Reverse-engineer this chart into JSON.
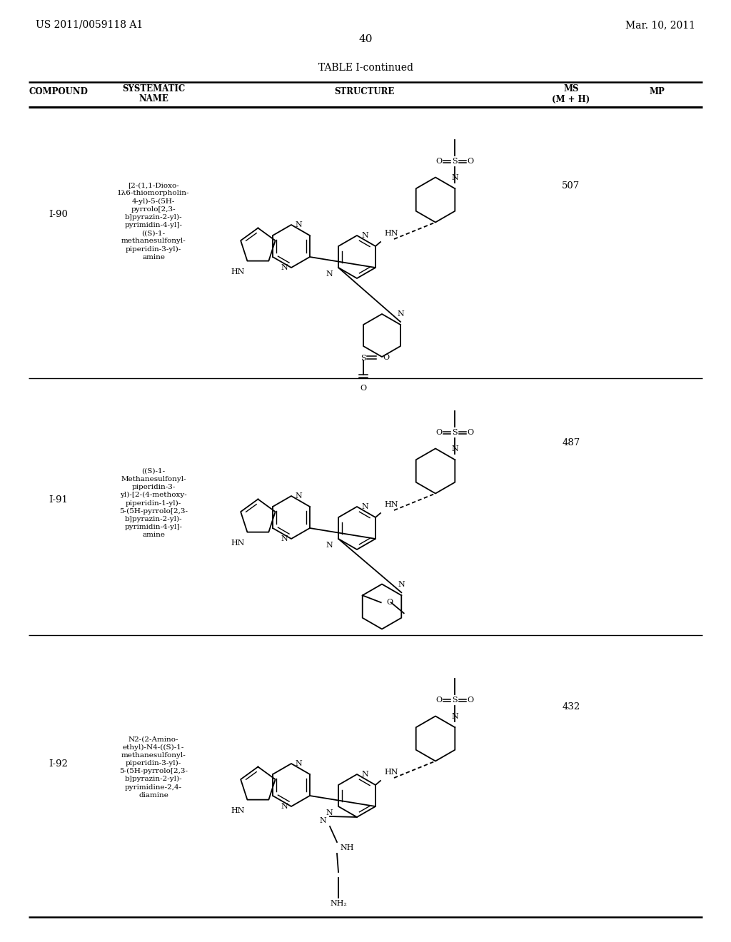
{
  "page_header_left": "US 2011/0059118 A1",
  "page_header_right": "Mar. 10, 2011",
  "page_number": "40",
  "table_title": "TABLE I-continued",
  "bg_color": "#ffffff"
}
